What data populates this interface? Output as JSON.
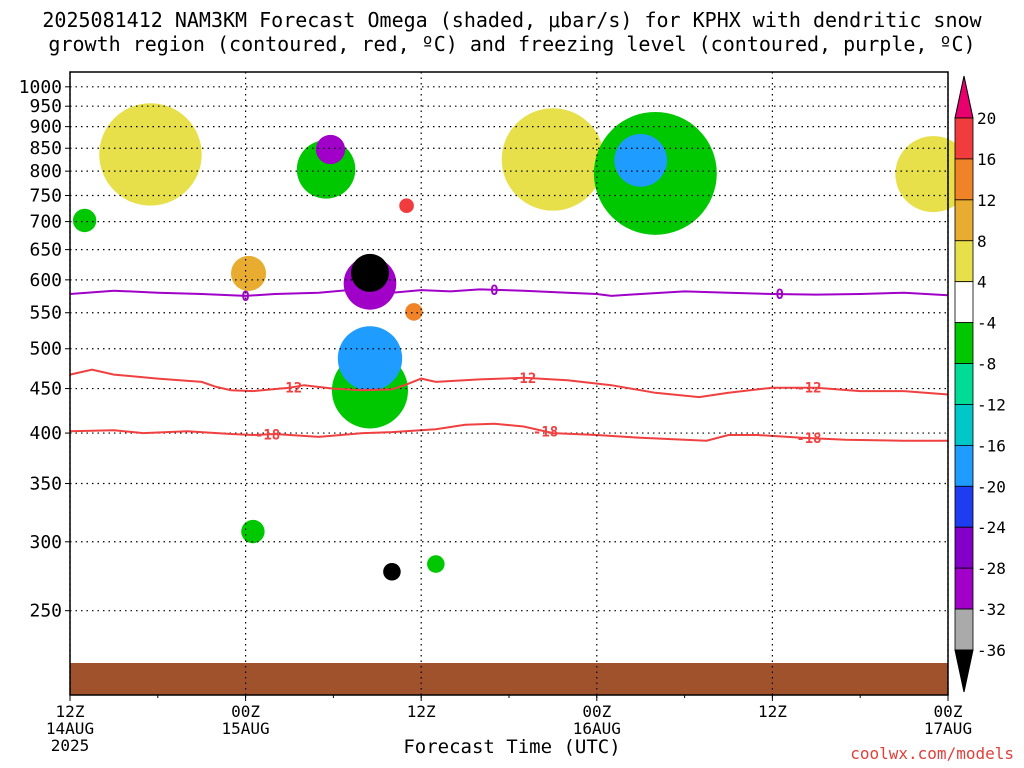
{
  "title_line1": "2025081412 NAM3KM Forecast Omega (shaded, μbar/s) for KPHX with dendritic snow",
  "title_line2": "growth region (contoured, red, ºC) and freezing level (contoured, purple, ºC)",
  "credit": "coolwx.com/models",
  "chart_data": {
    "type": "heatmap",
    "xlabel": "Forecast Time (UTC)",
    "ylabel": "",
    "x_hours_range": [
      0,
      60
    ],
    "y_pressure_range": [
      1040,
      200
    ],
    "x_ticks": [
      {
        "hour": 0,
        "l1": "12Z",
        "l2": "14AUG",
        "l3": "2025"
      },
      {
        "hour": 12,
        "l1": "00Z",
        "l2": "15AUG",
        "l3": ""
      },
      {
        "hour": 24,
        "l1": "12Z",
        "l2": "",
        "l3": ""
      },
      {
        "hour": 36,
        "l1": "00Z",
        "l2": "16AUG",
        "l3": ""
      },
      {
        "hour": 48,
        "l1": "12Z",
        "l2": "",
        "l3": ""
      },
      {
        "hour": 60,
        "l1": "00Z",
        "l2": "17AUG",
        "l3": ""
      }
    ],
    "y_ticks": [
      "250",
      "300",
      "350",
      "400",
      "450",
      "500",
      "550",
      "600",
      "650",
      "700",
      "750",
      "800",
      "850",
      "900",
      "950",
      "1000"
    ],
    "colorbar": {
      "labels": [
        "20",
        "16",
        "12",
        "8",
        "4",
        "-4",
        "-8",
        "-12",
        "-16",
        "-20",
        "-24",
        "-28",
        "-32",
        "-36"
      ],
      "colors": [
        "#e8006e",
        "#f03c3c",
        "#f08228",
        "#e8ac30",
        "#e8e04a",
        "#ffffff",
        "#00c800",
        "#00dc96",
        "#00c8c8",
        "#1e9cff",
        "#1e3cf0",
        "#8200c8",
        "#a000c8",
        "#aaaaaa",
        "#000000"
      ]
    },
    "contours": [
      {
        "label": "-18",
        "color": "#f04040",
        "points": [
          [
            0,
            402
          ],
          [
            3,
            403
          ],
          [
            5,
            400
          ],
          [
            8,
            402
          ],
          [
            11,
            399
          ],
          [
            12.5,
            398
          ],
          [
            14,
            399
          ],
          [
            17,
            396
          ],
          [
            20,
            400
          ],
          [
            22,
            401
          ],
          [
            25,
            404
          ],
          [
            27,
            409
          ],
          [
            29,
            410
          ],
          [
            31,
            407
          ],
          [
            33,
            400
          ],
          [
            36,
            398
          ],
          [
            39,
            395
          ],
          [
            42,
            393
          ],
          [
            43.5,
            392
          ],
          [
            45,
            398
          ],
          [
            47,
            398
          ],
          [
            50,
            395
          ],
          [
            53,
            393
          ],
          [
            57,
            392
          ],
          [
            60,
            392
          ]
        ]
      },
      {
        "label": "-12",
        "color": "#f04040",
        "points": [
          [
            0,
            467
          ],
          [
            1.5,
            473
          ],
          [
            3,
            467
          ],
          [
            6,
            462
          ],
          [
            9,
            458
          ],
          [
            10,
            452
          ],
          [
            11,
            448
          ],
          [
            12.5,
            447
          ],
          [
            15,
            451
          ],
          [
            16,
            454
          ],
          [
            18,
            450
          ],
          [
            20,
            448
          ],
          [
            22,
            449
          ],
          [
            23,
            455
          ],
          [
            24,
            462
          ],
          [
            25,
            458
          ],
          [
            28,
            461
          ],
          [
            31,
            463
          ],
          [
            34,
            460
          ],
          [
            37,
            454
          ],
          [
            40,
            445
          ],
          [
            43,
            440
          ],
          [
            45,
            445
          ],
          [
            48,
            451
          ],
          [
            51,
            451
          ],
          [
            54,
            447
          ],
          [
            57,
            447
          ],
          [
            60,
            443
          ]
        ]
      },
      {
        "label": "0",
        "color": "#a000c8",
        "points": [
          [
            0,
            578
          ],
          [
            3,
            583
          ],
          [
            6,
            580
          ],
          [
            9,
            578
          ],
          [
            12,
            575
          ],
          [
            14,
            578
          ],
          [
            17,
            580
          ],
          [
            19,
            584
          ],
          [
            20,
            573
          ],
          [
            22,
            580
          ],
          [
            24,
            584
          ],
          [
            26,
            582
          ],
          [
            28,
            585
          ],
          [
            31,
            583
          ],
          [
            34,
            580
          ],
          [
            36,
            578
          ],
          [
            37,
            575
          ],
          [
            39,
            578
          ],
          [
            42,
            582
          ],
          [
            45,
            580
          ],
          [
            48,
            578
          ],
          [
            51,
            577
          ],
          [
            54,
            578
          ],
          [
            57,
            580
          ],
          [
            60,
            576
          ]
        ]
      }
    ],
    "label_positions": {
      "-18": [
        13.5,
        32.5,
        50.5
      ],
      "-12": [
        15,
        31,
        50.5
      ],
      "0": [
        12,
        29,
        48.5
      ]
    },
    "omega_features": [
      {
        "hour": 20.5,
        "hw": 1.3,
        "top": 415,
        "bottom": 900,
        "value": -36
      },
      {
        "hour": 20.5,
        "hw": 1.8,
        "top": 380,
        "bottom": 930,
        "value": -28
      },
      {
        "hour": 20.5,
        "hw": 2.2,
        "top": 250,
        "bottom": 950,
        "value": -16
      },
      {
        "hour": 20.5,
        "hw": 2.6,
        "top": 210,
        "bottom": 955,
        "value": -8
      },
      {
        "hour": 22,
        "hw": 0.6,
        "top": 240,
        "bottom": 320,
        "value": -36
      },
      {
        "hour": 17.8,
        "hw": 1.0,
        "top": 780,
        "bottom": 920,
        "value": -28
      },
      {
        "hour": 17.5,
        "hw": 2.0,
        "top": 680,
        "bottom": 950,
        "value": -8
      },
      {
        "hour": 23,
        "hw": 0.5,
        "top": 650,
        "bottom": 820,
        "value": 16
      },
      {
        "hour": 23.5,
        "hw": 0.6,
        "top": 490,
        "bottom": 620,
        "value": 12
      },
      {
        "hour": 40,
        "hw": 4.2,
        "top": 680,
        "bottom": 930,
        "value": -8
      },
      {
        "hour": 39,
        "hw": 1.8,
        "top": 770,
        "bottom": 880,
        "value": -16
      },
      {
        "hour": 12.5,
        "hw": 0.8,
        "top": 250,
        "bottom": 380,
        "value": -8
      },
      {
        "hour": 25,
        "hw": 0.6,
        "top": 250,
        "bottom": 320,
        "value": -8
      },
      {
        "hour": 1,
        "hw": 0.8,
        "top": 530,
        "bottom": 930,
        "value": -8
      },
      {
        "hour": 5.5,
        "hw": 3.5,
        "top": 760,
        "bottom": 920,
        "value": 4
      },
      {
        "hour": 12.2,
        "hw": 1.2,
        "top": 490,
        "bottom": 760,
        "value": 8
      },
      {
        "hour": 33,
        "hw": 3.5,
        "top": 740,
        "bottom": 920,
        "value": 4
      },
      {
        "hour": 59,
        "hw": 2.6,
        "top": 700,
        "bottom": 900,
        "value": 4
      }
    ]
  }
}
